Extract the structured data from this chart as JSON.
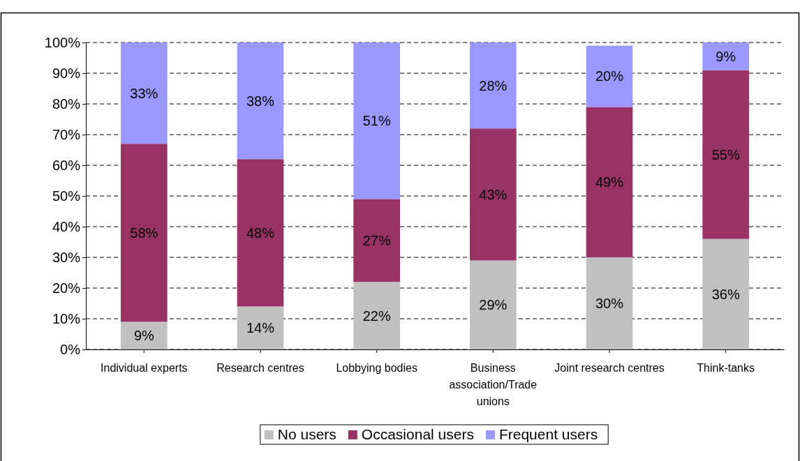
{
  "chart_data": {
    "type": "bar",
    "stacked": true,
    "categories": [
      "Individual experts",
      "Research centres",
      "Lobbying bodies",
      "Business association/Trade unions",
      "Joint research centres",
      "Think-tanks"
    ],
    "series": [
      {
        "name": "No users",
        "color": "#c0c0c0",
        "values": [
          9,
          14,
          22,
          29,
          30,
          36
        ]
      },
      {
        "name": "Occasional users",
        "color": "#993366",
        "values": [
          58,
          48,
          27,
          43,
          49,
          55
        ]
      },
      {
        "name": "Frequent users",
        "color": "#9999ff",
        "values": [
          33,
          38,
          51,
          28,
          20,
          9
        ]
      }
    ],
    "ylim": [
      0,
      100
    ],
    "yticks": [
      {
        "value": 0,
        "label": "0%"
      },
      {
        "value": 10,
        "label": "10%"
      },
      {
        "value": 20,
        "label": "20%"
      },
      {
        "value": 30,
        "label": "30%"
      },
      {
        "value": 40,
        "label": "40%"
      },
      {
        "value": 50,
        "label": "50%"
      },
      {
        "value": 60,
        "label": "60%"
      },
      {
        "value": 70,
        "label": "70%"
      },
      {
        "value": 80,
        "label": "80%"
      },
      {
        "value": 90,
        "label": "90%"
      },
      {
        "value": 100,
        "label": "100%"
      }
    ],
    "value_labels": [
      [
        "9%",
        "14%",
        "22%",
        "29%",
        "30%",
        "36%"
      ],
      [
        "58%",
        "48%",
        "27%",
        "43%",
        "49%",
        "55%"
      ],
      [
        "33%",
        "38%",
        "51%",
        "28%",
        "20%",
        "9%"
      ]
    ],
    "grid": "y",
    "legend": "bottom"
  }
}
